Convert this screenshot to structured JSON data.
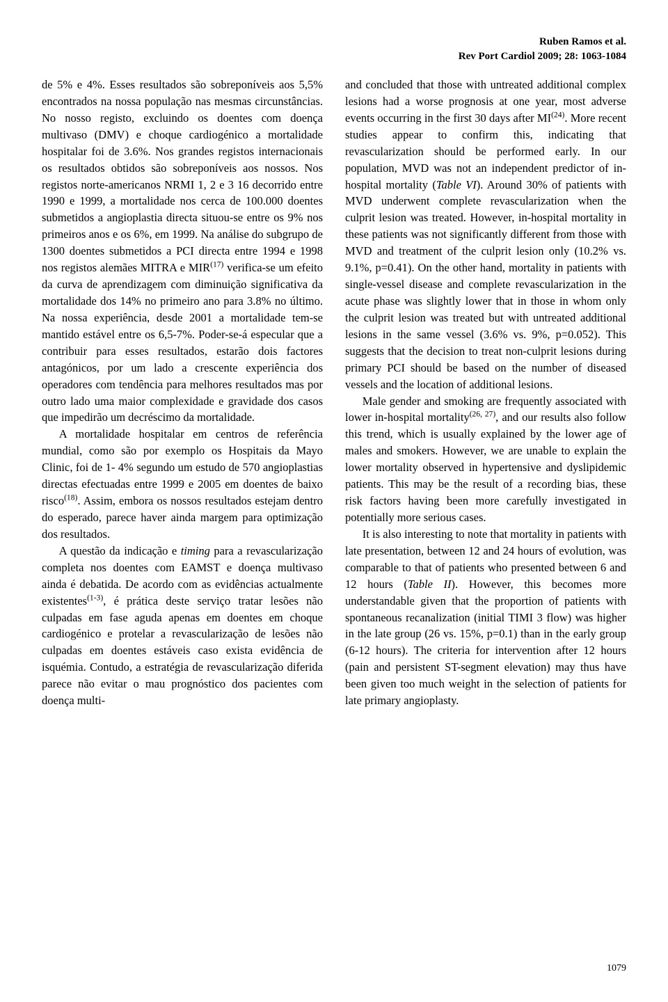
{
  "header": {
    "author": "Ruben Ramos et al.",
    "citation": "Rev Port Cardiol 2009; 28: 1063-1084"
  },
  "left_column": {
    "para1": "de 5% e 4%. Esses resultados são sobreponíveis aos 5,5% encontrados na nossa população nas mesmas circunstâncias. No nosso registo, excluindo os doentes com doença multivaso (DMV) e choque cardiogénico a mortalidade hospitalar foi de 3.6%. Nos grandes registos internacionais os resultados obtidos são sobreponíveis aos nossos. Nos registos norte-americanos NRMI 1, 2 e 3 16 decorrido entre 1990 e 1999, a mortalidade nos cerca de 100.000 doentes submetidos a angioplastia directa situou-se entre os 9% nos primeiros anos e os 6%, em 1999. Na análise do subgrupo de 1300 doentes submetidos a PCI directa entre 1994 e 1998 nos registos alemães MITRA e MIR",
    "sup1": "(17)",
    "para1b": " verifica-se um efeito da curva de aprendizagem com diminuição significativa da mortalidade dos 14% no primeiro ano para 3.8% no último. Na nossa experiência, desde 2001 a mortalidade tem-se mantido estável entre os 6,5-7%. Poder-se-á especular que a contribuir para esses resultados, estarão dois factores antagónicos, por um lado a crescente experiência dos operadores com tendência para melhores resultados mas por outro lado uma maior complexidade e gravidade dos casos que impedirão um decréscimo da mortalidade.",
    "para2a": "A mortalidade hospitalar em centros de referência mundial, como são por exemplo os Hospitais da Mayo Clinic, foi de 1- 4% segundo um estudo de 570 angioplastias directas efectuadas entre 1999 e 2005 em doentes de baixo risco",
    "sup2": "(18)",
    "para2b": ". Assim, embora os nossos resultados estejam dentro do esperado, parece haver ainda margem para optimização dos resultados.",
    "para3a": "A questão da indicação e ",
    "para3_italic": "timing",
    "para3b": " para a revascularização completa nos doentes com EAMST e doença multivaso ainda é debatida. De acordo com as evidências actualmente existentes",
    "sup3": "(1-3)",
    "para3c": ", é prática deste serviço tratar lesões não culpadas em fase aguda apenas em doentes em choque cardiogénico e protelar a revascularização de lesões não culpadas em doentes estáveis caso exista evidência de isquémia. Contudo, a estratégia de revascularização diferida parece não evitar o mau prognóstico dos pacientes com doença multi-"
  },
  "right_column": {
    "para1a": "and concluded that those with untreated additional complex lesions had a worse prognosis at one year, most adverse events occurring in the first 30 days after MI",
    "sup1": "(24)",
    "para1b": ". More recent studies appear to confirm this, indicating that revascularization should be performed early. In our population, MVD was not an independent predictor of in-hospital mortality (",
    "para1_italic1": "Table VI",
    "para1c": "). Around 30% of patients with MVD underwent complete revascularization when the culprit lesion was treated. However, in-hospital mortality in these patients was not significantly different from those with MVD and treatment of the culprit lesion only (10.2% vs. 9.1%, p=0.41). On the other hand, mortality in patients with single-vessel disease and complete revascularization in the acute phase was slightly lower that in those in whom only the culprit lesion was treated but with untreated additional lesions in the same vessel (3.6% vs. 9%, p=0.052). This suggests that the decision to treat non-culprit lesions during primary PCI should be based on the number of diseased vessels and the location of additional lesions.",
    "para2a": "Male gender and smoking are frequently associated with lower in-hospital mortality",
    "sup2": "(26, 27)",
    "para2b": ", and our results also follow this trend, which is usually explained by the lower age of males and smokers. However, we are unable to explain the lower mortality observed in hypertensive and dyslipidemic patients. This may be the result of a recording bias, these risk factors having been more carefully investigated in potentially more serious cases.",
    "para3a": "It is also interesting to note that mortality in patients with late presentation, between 12 and 24 hours of evolution, was comparable to that of patients who presented between 6 and 12 hours (",
    "para3_italic": "Table II",
    "para3b": "). However, this becomes more understandable given that the proportion of patients with spontaneous recanalization (initial TIMI 3 flow) was higher in the late group (26 vs. 15%, p=0.1) than in the early group (6-12 hours). The criteria for intervention after 12 hours (pain and persistent ST-segment elevation) may thus have been given too much weight in the selection of patients for late primary angioplasty."
  },
  "page_number": "1079"
}
